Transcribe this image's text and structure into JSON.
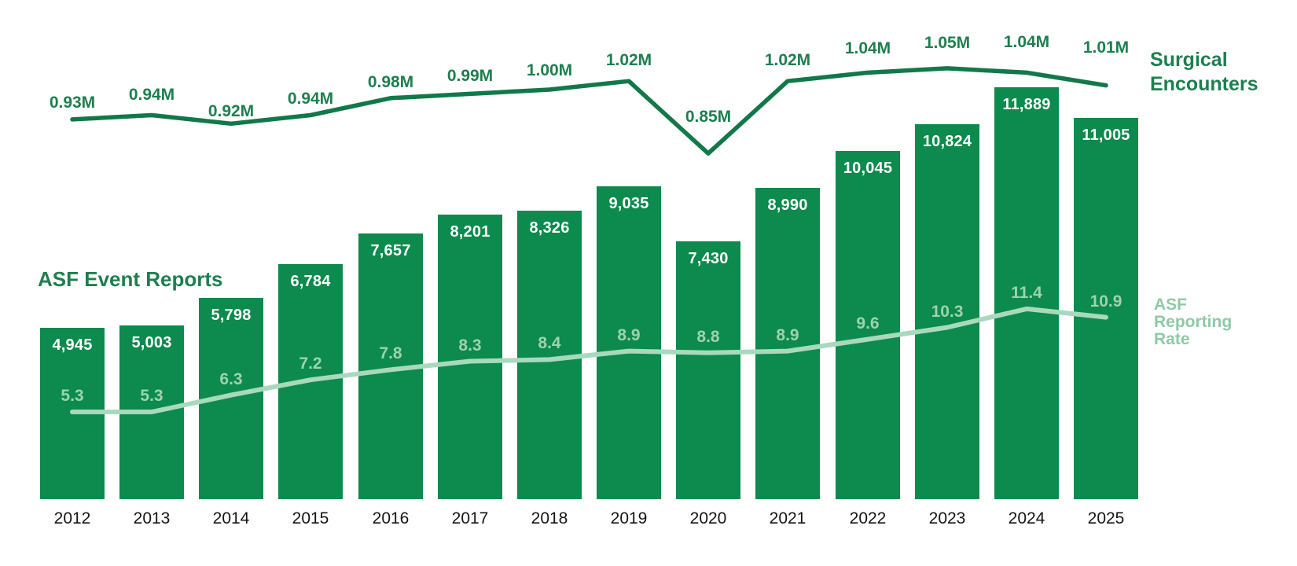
{
  "labels": {
    "bars_title": "ASF Event Reports",
    "surgical_title": "Surgical Encounters",
    "rate_title": "ASF Reporting Rate"
  },
  "colors": {
    "bar": "#0d8a4d",
    "dark_line": "#12784a",
    "dark_text": "#1d7f4f",
    "light_line": "#a9d9bc",
    "light_text": "#9fd2b0",
    "light_title": "#8fc9a5",
    "bar_value_text": "#ffffff",
    "axis_text": "#131313",
    "background": "#ffffff"
  },
  "chart_data": {
    "type": "bar",
    "subtype": "bar-line-combo",
    "categories": [
      "2012",
      "2013",
      "2014",
      "2015",
      "2016",
      "2017",
      "2018",
      "2019",
      "2020",
      "2021",
      "2022",
      "2023",
      "2024",
      "2025"
    ],
    "series": [
      {
        "name": "ASF Event Reports",
        "type": "bar",
        "values": [
          4945,
          5003,
          5798,
          6784,
          7657,
          8201,
          8326,
          9035,
          7430,
          8990,
          10045,
          10824,
          11889,
          11005
        ],
        "labels": [
          "4,945",
          "5,003",
          "5,798",
          "6,784",
          "7,657",
          "8,201",
          "8,326",
          "9,035",
          "7,430",
          "8,990",
          "10,045",
          "10,824",
          "11,889",
          "11,005"
        ]
      },
      {
        "name": "Surgical Encounters",
        "type": "line",
        "unit": "millions",
        "values": [
          0.93,
          0.94,
          0.92,
          0.94,
          0.98,
          0.99,
          1.0,
          1.02,
          0.85,
          1.02,
          1.04,
          1.05,
          1.04,
          1.01
        ],
        "labels": [
          "0.93M",
          "0.94M",
          "0.92M",
          "0.94M",
          "0.98M",
          "0.99M",
          "1.00M",
          "1.02M",
          "0.85M",
          "1.02M",
          "1.04M",
          "1.05M",
          "1.04M",
          "1.01M"
        ]
      },
      {
        "name": "ASF Reporting Rate",
        "type": "line",
        "values": [
          5.3,
          5.3,
          6.3,
          7.2,
          7.8,
          8.3,
          8.4,
          8.9,
          8.8,
          8.9,
          9.6,
          10.3,
          11.4,
          10.9
        ],
        "labels": [
          "5.3",
          "5.3",
          "6.3",
          "7.2",
          "7.8",
          "8.3",
          "8.4",
          "8.9",
          "8.8",
          "8.9",
          "9.6",
          "10.3",
          "11.4",
          "10.9"
        ]
      }
    ],
    "grid": false,
    "axis_lines": false,
    "legend_position": "series labels placed beside data (left for bars, right for lines)",
    "bar_value_labels": "inside bar tops, white",
    "ylim_bars": [
      0,
      12000
    ],
    "ylim_surgical_encounters_M": [
      0.85,
      1.05
    ],
    "ylim_reporting_rate": [
      5.3,
      11.4
    ]
  }
}
